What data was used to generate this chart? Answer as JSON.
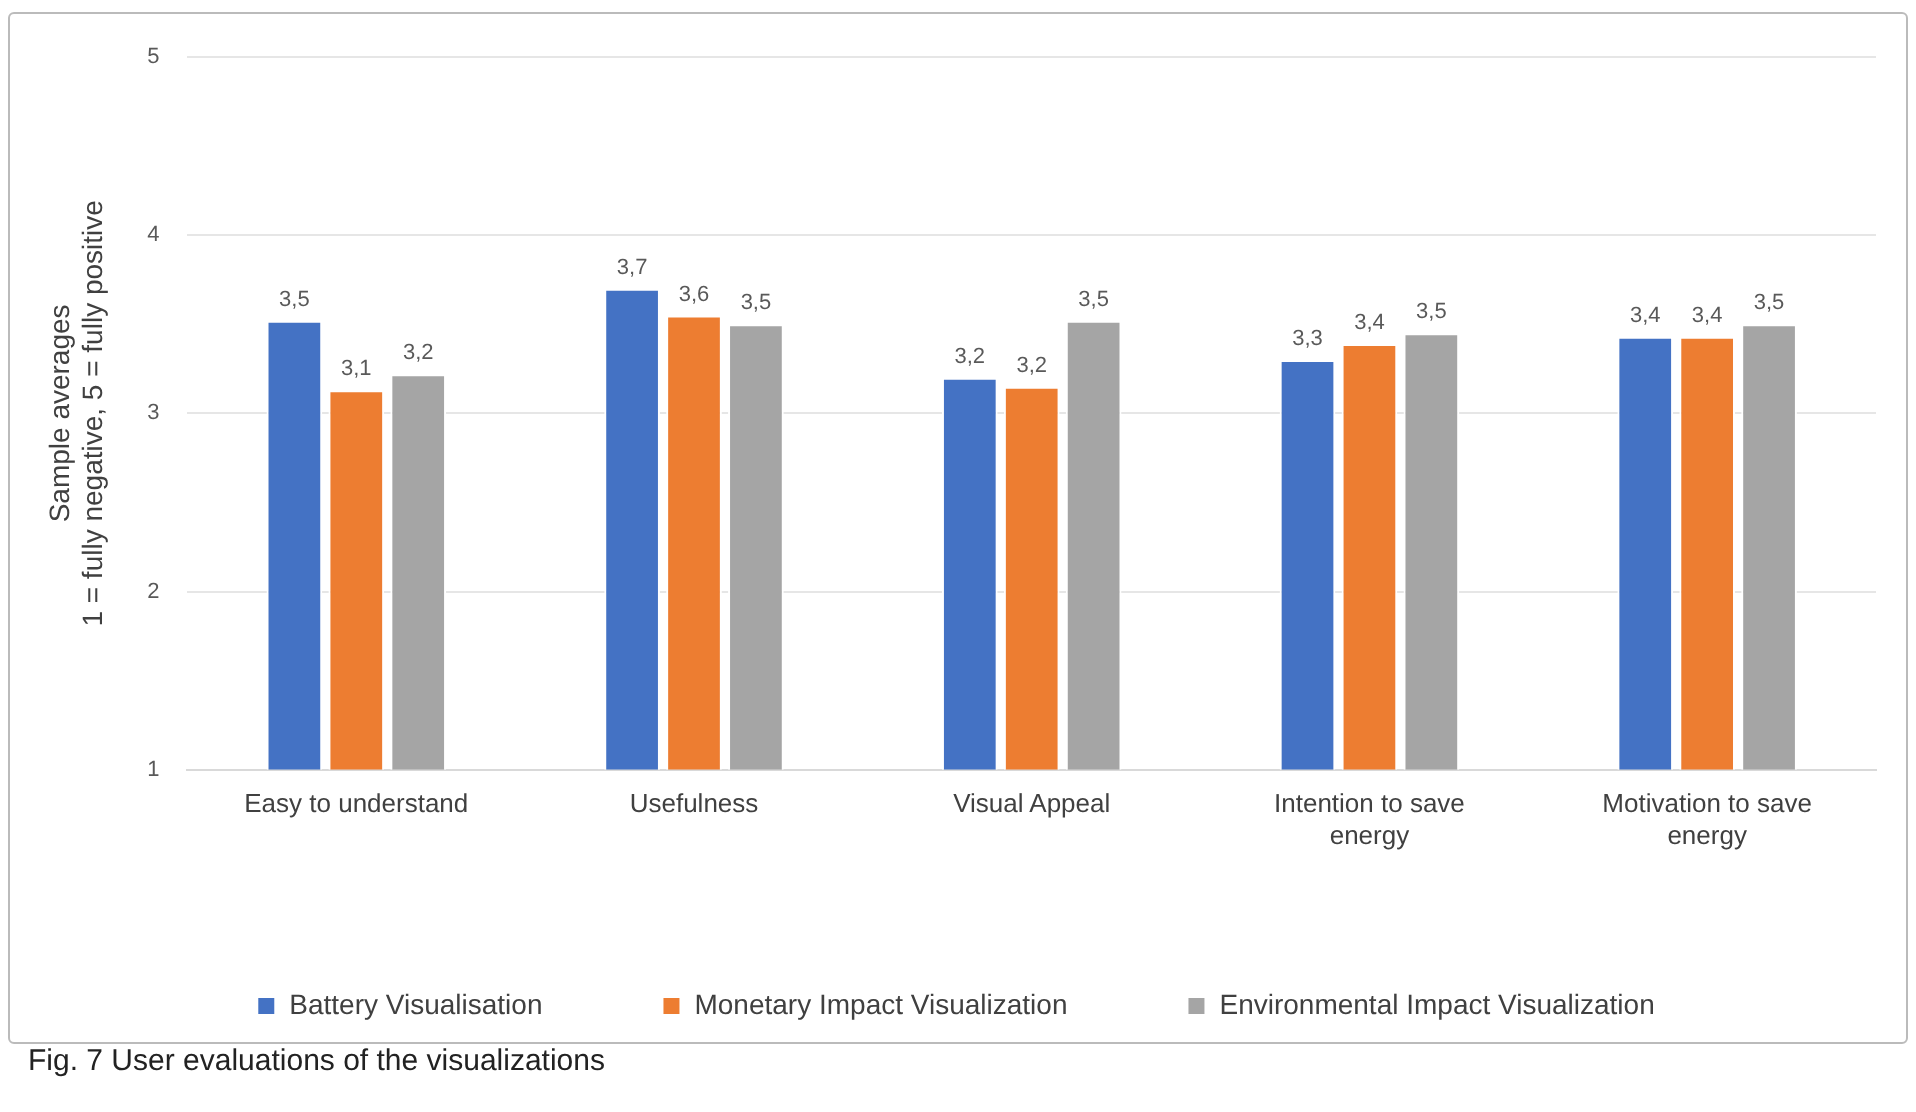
{
  "chart_data": {
    "type": "bar",
    "ylabel": "Sample averages\n1 = fully negative, 5 = fully positive",
    "categories": [
      "Easy to understand",
      "Usefulness",
      "Visual Appeal",
      "Intention to save energy",
      "Motivation to save energy"
    ],
    "series": [
      {
        "name": "Battery Visualisation",
        "color": "#4472c4",
        "values": [
          3.52,
          3.7,
          3.2,
          3.3,
          3.43
        ],
        "value_labels": [
          "3,5",
          "3,7",
          "3,2",
          "3,3",
          "3,4"
        ]
      },
      {
        "name": "Monetary Impact Visualization",
        "color": "#ed7d31",
        "values": [
          3.13,
          3.55,
          3.15,
          3.39,
          3.43
        ],
        "value_labels": [
          "3,1",
          "3,6",
          "3,2",
          "3,4",
          "3,4"
        ]
      },
      {
        "name": "Environmental Impact Visualization",
        "color": "#a5a5a5",
        "values": [
          3.22,
          3.5,
          3.52,
          3.45,
          3.5
        ],
        "value_labels": [
          "3,2",
          "3,5",
          "3,5",
          "3,5",
          "3,5"
        ]
      }
    ],
    "ylim": [
      1,
      5
    ],
    "yticks": [
      1,
      2,
      3,
      4,
      5
    ],
    "grid": "y",
    "legend": "bottom",
    "annotations": [
      "Fig. 7 User evaluations of the visualizations"
    ]
  }
}
